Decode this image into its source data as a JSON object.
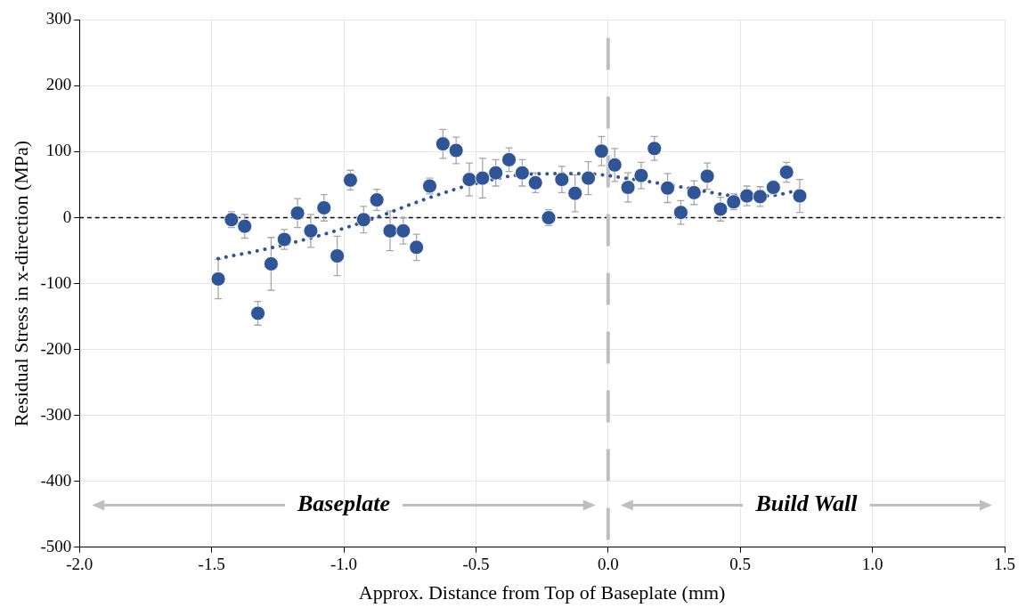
{
  "chart_data": {
    "type": "scatter",
    "xlabel": "Approx. Distance from Top of Baseplate (mm)",
    "ylabel": "Residual Stress in x-direction (MPa)",
    "xlim": [
      -2,
      1.5
    ],
    "xticks": [
      {
        "value": -2,
        "label": "-2.0"
      },
      {
        "value": -1.5,
        "label": "-1.5"
      },
      {
        "value": -1,
        "label": "-1.0"
      },
      {
        "value": -0.5,
        "label": "-0.5"
      },
      {
        "value": 0,
        "label": "0.0"
      },
      {
        "value": 0.5,
        "label": "0.5"
      },
      {
        "value": 1,
        "label": "1.0"
      },
      {
        "value": 1.5,
        "label": "1.5"
      }
    ],
    "ylim": [
      -500,
      300
    ],
    "yticks": [
      -500,
      -400,
      -300,
      -200,
      -100,
      0,
      100,
      200,
      300
    ],
    "grid": true,
    "legend": false,
    "series": [
      {
        "color": "#2f5597",
        "marker": "circle",
        "x": [
          -1.475,
          -1.425,
          -1.375,
          -1.325,
          -1.275,
          -1.225,
          -1.175,
          -1.125,
          -1.075,
          -1.025,
          -0.975,
          -0.925,
          -0.875,
          -0.825,
          -0.775,
          -0.725,
          -0.675,
          -0.625,
          -0.575,
          -0.525,
          -0.475,
          -0.425,
          -0.375,
          -0.325,
          -0.275,
          -0.225,
          -0.175,
          -0.125,
          -0.075,
          -0.025,
          0.025,
          0.075,
          0.125,
          0.175,
          0.225,
          0.275,
          0.325,
          0.375,
          0.425,
          0.475,
          0.525,
          0.575,
          0.625,
          0.675,
          0.725
        ],
        "values": [
          -93,
          -3,
          -13,
          -145,
          -70,
          -33,
          7,
          -20,
          15,
          -58,
          57,
          -3,
          27,
          -20,
          -20,
          -45,
          48,
          112,
          102,
          58,
          60,
          68,
          88,
          68,
          53,
          0,
          58,
          37,
          60,
          101,
          80,
          46,
          64,
          105,
          45,
          8,
          38,
          63,
          13,
          24,
          33,
          32,
          46,
          69,
          33
        ],
        "errors": [
          30,
          12,
          18,
          18,
          40,
          15,
          22,
          25,
          20,
          30,
          15,
          20,
          16,
          30,
          20,
          20,
          12,
          22,
          20,
          25,
          30,
          20,
          18,
          20,
          15,
          12,
          20,
          28,
          25,
          22,
          25,
          22,
          20,
          18,
          22,
          18,
          18,
          20,
          18,
          12,
          15,
          15,
          10,
          15,
          25
        ]
      },
      {
        "type": "line",
        "color": "#2f5597",
        "marker": "none",
        "line_style": "dotted",
        "x": [
          -1.475,
          -1.3,
          -1.1,
          -0.9,
          -0.7,
          -0.5,
          -0.3,
          -0.1,
          0.1,
          0.3,
          0.5,
          0.6,
          0.725
        ],
        "values": [
          -62,
          -48,
          -28,
          -3,
          27,
          52,
          66,
          67,
          58,
          45,
          33,
          33,
          42
        ]
      }
    ],
    "ref_lines": [
      {
        "axis": "y",
        "value": 0,
        "color": "#000000",
        "line_style": "dashed"
      },
      {
        "axis": "x",
        "value": 0,
        "color": "#bfbfbf",
        "line_style": "dashed"
      }
    ],
    "annotations": [
      "Baseplate",
      "Build Wall"
    ]
  }
}
